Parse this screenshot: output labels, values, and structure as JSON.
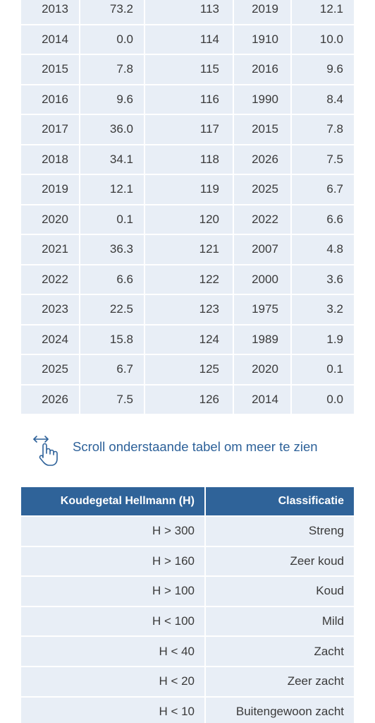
{
  "table1": {
    "rows": [
      [
        "2013",
        "73.2",
        "113",
        "2019",
        "12.1"
      ],
      [
        "2014",
        "0.0",
        "114",
        "1910",
        "10.0"
      ],
      [
        "2015",
        "7.8",
        "115",
        "2016",
        "9.6"
      ],
      [
        "2016",
        "9.6",
        "116",
        "1990",
        "8.4"
      ],
      [
        "2017",
        "36.0",
        "117",
        "2015",
        "7.8"
      ],
      [
        "2018",
        "34.1",
        "118",
        "2026",
        "7.5"
      ],
      [
        "2019",
        "12.1",
        "119",
        "2025",
        "6.7"
      ],
      [
        "2020",
        "0.1",
        "120",
        "2022",
        "6.6"
      ],
      [
        "2021",
        "36.3",
        "121",
        "2007",
        "4.8"
      ],
      [
        "2022",
        "6.6",
        "122",
        "2000",
        "3.6"
      ],
      [
        "2023",
        "22.5",
        "123",
        "1975",
        "3.2"
      ],
      [
        "2024",
        "15.8",
        "124",
        "1989",
        "1.9"
      ],
      [
        "2025",
        "6.7",
        "125",
        "2020",
        "0.1"
      ],
      [
        "2026",
        "7.5",
        "126",
        "2014",
        "0.0"
      ]
    ]
  },
  "scroll_hint": "Scroll onderstaande tabel om meer te zien",
  "table2": {
    "header": [
      "Koudegetal Hellmann (H)",
      "Classificatie"
    ],
    "rows": [
      [
        "H > 300",
        "Streng"
      ],
      [
        "H > 160",
        "Zeer koud"
      ],
      [
        "H > 100",
        "Koud"
      ],
      [
        "H < 100",
        "Mild"
      ],
      [
        "H < 40",
        "Zacht"
      ],
      [
        "H < 20",
        "Zeer zacht"
      ],
      [
        "H < 10",
        "Buitengewoon zacht"
      ]
    ]
  }
}
